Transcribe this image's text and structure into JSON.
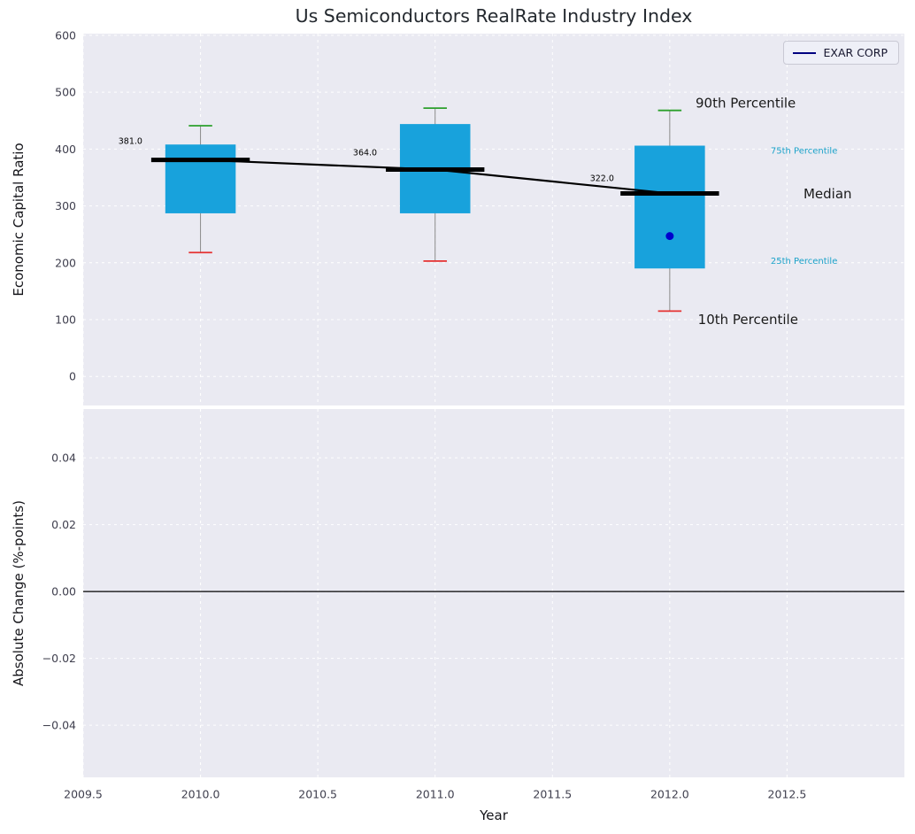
{
  "title": "Us Semiconductors RealRate Industry Index",
  "legend": {
    "label": "EXAR CORP"
  },
  "colors": {
    "box_fill": "#18a2dc",
    "whisker": "#8a8a8a",
    "cap_top": "#2ca02c",
    "cap_bottom": "#e53030",
    "median": "#000000",
    "trend": "#000000",
    "company_dot": "#0000cd",
    "teal_label": "#1ba2c9",
    "dark_label": "#1a1a1a",
    "legend_line": "#000080",
    "axes_bg": "#eaeaf2",
    "grid": "#ffffff",
    "tick_text": "#3f3f4e",
    "title_text": "#24292f"
  },
  "chart_data": [
    {
      "type": "boxplot",
      "title": "Us Semiconductors RealRate Industry Index",
      "ylabel": "Economic Capital Ratio",
      "xlabel": "Year",
      "xlim": [
        2009.5,
        2013.0
      ],
      "ylim": [
        -51,
        603
      ],
      "grid": true,
      "legend_position": "upper right",
      "xticks": [
        {
          "value": 2009.5,
          "label": "2009.5"
        },
        {
          "value": 2010.0,
          "label": "2010.0"
        },
        {
          "value": 2010.5,
          "label": "2010.5"
        },
        {
          "value": 2011.0,
          "label": "2011.0"
        },
        {
          "value": 2011.5,
          "label": "2011.5"
        },
        {
          "value": 2012.0,
          "label": "2012.0"
        },
        {
          "value": 2012.5,
          "label": "2012.5"
        }
      ],
      "yticks": [
        {
          "value": 0,
          "label": "0"
        },
        {
          "value": 100,
          "label": "100"
        },
        {
          "value": 200,
          "label": "200"
        },
        {
          "value": 300,
          "label": "300"
        },
        {
          "value": 400,
          "label": "400"
        },
        {
          "value": 500,
          "label": "500"
        },
        {
          "value": 600,
          "label": "600"
        }
      ],
      "boxes": [
        {
          "x": 2010,
          "p10": 218,
          "q1": 287,
          "median": 381,
          "q3": 408,
          "p90": 441,
          "label": "381.0",
          "label_x": 2009.65,
          "label_y": 413
        },
        {
          "x": 2011,
          "p10": 203,
          "q1": 287,
          "median": 364,
          "q3": 444,
          "p90": 472,
          "label": "364.0",
          "label_x": 2010.65,
          "label_y": 393
        },
        {
          "x": 2012,
          "p10": 115,
          "q1": 190,
          "median": 322,
          "q3": 406,
          "p90": 468,
          "label": "322.0",
          "label_x": 2011.66,
          "label_y": 348
        }
      ],
      "median_trend": [
        [
          2010,
          381
        ],
        [
          2011,
          364
        ],
        [
          2012,
          322
        ]
      ],
      "company_point": {
        "name": "EXAR CORP",
        "x": 2012,
        "y": 247
      },
      "annotations": [
        {
          "text": "90th Percentile",
          "x": 2012.11,
          "y": 481,
          "size": "large",
          "color": "dark"
        },
        {
          "text": "75th Percentile",
          "x": 2012.43,
          "y": 396,
          "size": "small",
          "color": "teal"
        },
        {
          "text": "Median",
          "x": 2012.57,
          "y": 321,
          "size": "large",
          "color": "dark"
        },
        {
          "text": "25th Percentile",
          "x": 2012.43,
          "y": 202,
          "size": "small",
          "color": "teal"
        },
        {
          "text": "10th Percentile",
          "x": 2012.12,
          "y": 100,
          "size": "large",
          "color": "dark"
        }
      ]
    },
    {
      "type": "line",
      "ylabel": "Absolute Change (%-points)",
      "xlabel": "Year",
      "xlim": [
        2009.5,
        2013.0
      ],
      "ylim": [
        -0.0556,
        0.0546
      ],
      "grid": true,
      "zero_line": 0.0,
      "yticks": [
        {
          "value": 0.04,
          "label": "0.04"
        },
        {
          "value": 0.02,
          "label": "0.02"
        },
        {
          "value": 0.0,
          "label": "0.00"
        },
        {
          "value": -0.02,
          "label": "−0.02"
        },
        {
          "value": -0.04,
          "label": "−0.04"
        }
      ],
      "series": []
    }
  ]
}
